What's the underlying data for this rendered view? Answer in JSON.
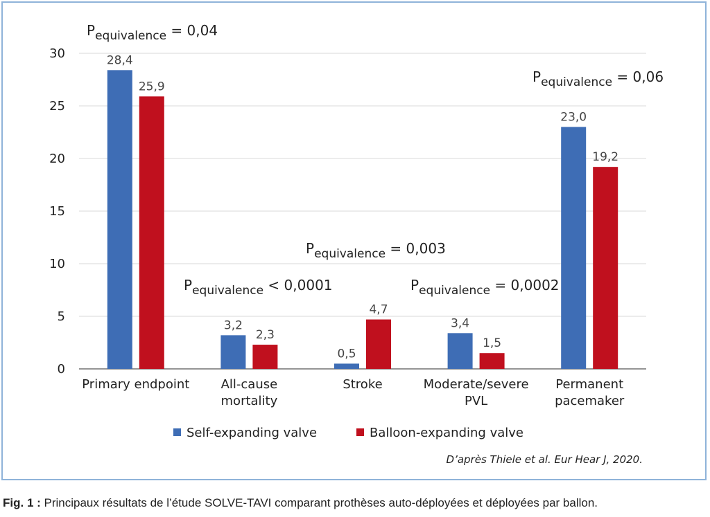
{
  "chart_data": {
    "type": "bar",
    "categories": [
      "Primary endpoint",
      "All-cause\nmortality",
      "Stroke",
      "Moderate/severe\nPVL",
      "Permanent\npacemaker"
    ],
    "series": [
      {
        "name": "Self-expanding valve",
        "values": [
          28.4,
          3.2,
          0.5,
          3.4,
          23.0
        ],
        "labels": [
          "28,4",
          "3,2",
          "0,5",
          "3,4",
          "23,0"
        ],
        "color": "#3e6db5"
      },
      {
        "name": "Balloon-expanding valve",
        "values": [
          25.9,
          2.3,
          4.7,
          1.5,
          19.2
        ],
        "labels": [
          "25,9",
          "2,3",
          "4,7",
          "1,5",
          "19,2"
        ],
        "color": "#c0101e"
      }
    ],
    "ylim": [
      0,
      30
    ],
    "yticks": [
      0,
      5,
      10,
      15,
      20,
      25,
      30
    ],
    "grid": true,
    "legend": "bottom",
    "annotations": [
      {
        "p": "P",
        "sub": "equivalence",
        "text": " = 0,04"
      },
      {
        "p": "P",
        "sub": "equivalence",
        "text": " < 0,0001"
      },
      {
        "p": "P",
        "sub": "equivalence",
        "text": " = 0,003"
      },
      {
        "p": "P",
        "sub": "equivalence",
        "text": " = 0,0002"
      },
      {
        "p": "P",
        "sub": "equivalence",
        "text": " = 0,06"
      }
    ]
  },
  "source": "D’après Thiele et al. Eur Hear J, 2020.",
  "caption": {
    "label": "Fig. 1 :",
    "text": " Principaux résultats de l’étude SOLVE-TAVI comparant prothèses auto-déployées et déployées par ballon."
  }
}
